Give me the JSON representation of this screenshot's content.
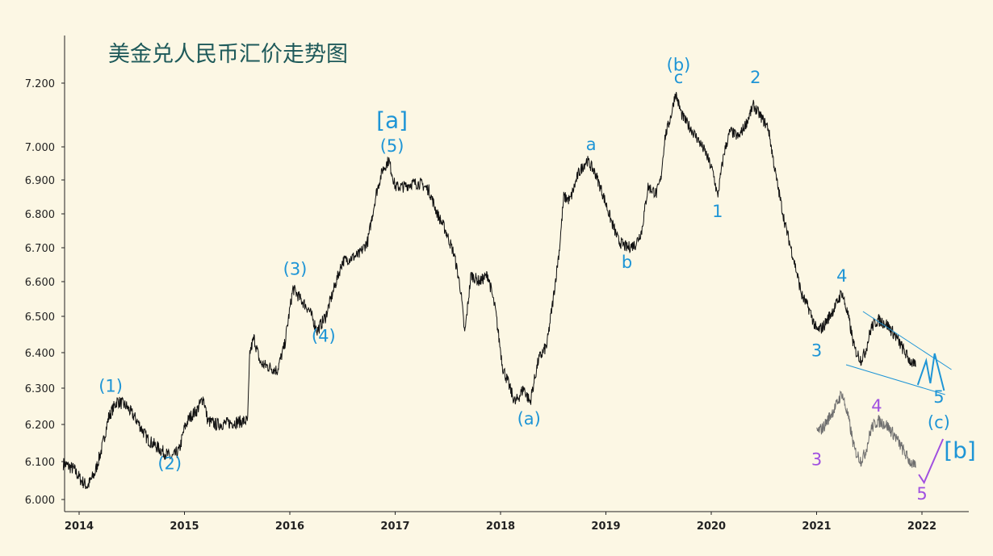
{
  "chart_data": {
    "type": "line",
    "title": "美金兑人民币汇价走势图",
    "xlabel": "",
    "ylabel": "",
    "x_ticks": [
      "2014",
      "2015",
      "2016",
      "2017",
      "2018",
      "2019",
      "2020",
      "2021",
      "2022"
    ],
    "y_ticks": [
      "6.000",
      "6.100",
      "6.200",
      "6.300",
      "6.400",
      "6.500",
      "6.600",
      "6.700",
      "6.800",
      "6.900",
      "7.000",
      "7.200"
    ],
    "xlim": [
      2013.85,
      2022.45
    ],
    "ylim_note": "non-linear price axis as printed",
    "grid": false,
    "colors": {
      "price": "#111111",
      "wave_blue": "#1e95d6",
      "wave_purple": "#a050e0",
      "projection_gray": "#6f6f6f",
      "background": "#fcf7e4",
      "title": "#1e5a5a"
    },
    "series": [
      {
        "values": [
          [
            2013.85,
            6.095
          ],
          [
            2013.95,
            6.08
          ],
          [
            2014.02,
            6.05
          ],
          [
            2014.08,
            6.035
          ],
          [
            2014.15,
            6.07
          ],
          [
            2014.22,
            6.14
          ],
          [
            2014.28,
            6.22
          ],
          [
            2014.36,
            6.265
          ],
          [
            2014.45,
            6.25
          ],
          [
            2014.55,
            6.21
          ],
          [
            2014.65,
            6.16
          ],
          [
            2014.78,
            6.13
          ],
          [
            2014.88,
            6.11
          ],
          [
            2014.95,
            6.13
          ],
          [
            2015.0,
            6.19
          ],
          [
            2015.05,
            6.22
          ],
          [
            2015.12,
            6.24
          ],
          [
            2015.18,
            6.275
          ],
          [
            2015.22,
            6.21
          ],
          [
            2015.3,
            6.2
          ],
          [
            2015.45,
            6.205
          ],
          [
            2015.6,
            6.21
          ],
          [
            2015.62,
            6.4
          ],
          [
            2015.66,
            6.44
          ],
          [
            2015.72,
            6.37
          ],
          [
            2015.8,
            6.36
          ],
          [
            2015.88,
            6.35
          ],
          [
            2015.95,
            6.42
          ],
          [
            2016.0,
            6.52
          ],
          [
            2016.03,
            6.58
          ],
          [
            2016.1,
            6.55
          ],
          [
            2016.18,
            6.52
          ],
          [
            2016.26,
            6.46
          ],
          [
            2016.34,
            6.5
          ],
          [
            2016.42,
            6.58
          ],
          [
            2016.5,
            6.66
          ],
          [
            2016.58,
            6.67
          ],
          [
            2016.66,
            6.68
          ],
          [
            2016.74,
            6.72
          ],
          [
            2016.82,
            6.86
          ],
          [
            2016.88,
            6.93
          ],
          [
            2016.94,
            6.96
          ],
          [
            2017.0,
            6.88
          ],
          [
            2017.08,
            6.88
          ],
          [
            2017.16,
            6.89
          ],
          [
            2017.24,
            6.89
          ],
          [
            2017.32,
            6.87
          ],
          [
            2017.4,
            6.8
          ],
          [
            2017.48,
            6.75
          ],
          [
            2017.56,
            6.68
          ],
          [
            2017.62,
            6.58
          ],
          [
            2017.66,
            6.45
          ],
          [
            2017.72,
            6.62
          ],
          [
            2017.8,
            6.6
          ],
          [
            2017.88,
            6.62
          ],
          [
            2017.95,
            6.52
          ],
          [
            2018.02,
            6.36
          ],
          [
            2018.1,
            6.29
          ],
          [
            2018.14,
            6.26
          ],
          [
            2018.22,
            6.3
          ],
          [
            2018.28,
            6.26
          ],
          [
            2018.36,
            6.38
          ],
          [
            2018.44,
            6.42
          ],
          [
            2018.5,
            6.55
          ],
          [
            2018.56,
            6.7
          ],
          [
            2018.6,
            6.85
          ],
          [
            2018.66,
            6.84
          ],
          [
            2018.74,
            6.92
          ],
          [
            2018.82,
            6.96
          ],
          [
            2018.9,
            6.92
          ],
          [
            2018.98,
            6.85
          ],
          [
            2019.05,
            6.78
          ],
          [
            2019.12,
            6.72
          ],
          [
            2019.2,
            6.7
          ],
          [
            2019.28,
            6.71
          ],
          [
            2019.34,
            6.75
          ],
          [
            2019.4,
            6.88
          ],
          [
            2019.48,
            6.86
          ],
          [
            2019.52,
            6.9
          ],
          [
            2019.56,
            7.03
          ],
          [
            2019.62,
            7.1
          ],
          [
            2019.66,
            7.17
          ],
          [
            2019.72,
            7.1
          ],
          [
            2019.8,
            7.06
          ],
          [
            2019.88,
            7.02
          ],
          [
            2019.95,
            6.98
          ],
          [
            2020.02,
            6.92
          ],
          [
            2020.06,
            6.85
          ],
          [
            2020.12,
            6.98
          ],
          [
            2020.18,
            7.05
          ],
          [
            2020.26,
            7.03
          ],
          [
            2020.34,
            7.08
          ],
          [
            2020.4,
            7.13
          ],
          [
            2020.46,
            7.1
          ],
          [
            2020.54,
            7.06
          ],
          [
            2020.62,
            6.9
          ],
          [
            2020.7,
            6.77
          ],
          [
            2020.78,
            6.67
          ],
          [
            2020.86,
            6.56
          ],
          [
            2020.93,
            6.52
          ],
          [
            2021.0,
            6.46
          ],
          [
            2021.06,
            6.47
          ],
          [
            2021.12,
            6.5
          ],
          [
            2021.18,
            6.53
          ],
          [
            2021.24,
            6.57
          ],
          [
            2021.3,
            6.5
          ],
          [
            2021.36,
            6.41
          ],
          [
            2021.42,
            6.38
          ],
          [
            2021.46,
            6.4
          ],
          [
            2021.52,
            6.47
          ],
          [
            2021.58,
            6.49
          ],
          [
            2021.66,
            6.48
          ],
          [
            2021.74,
            6.45
          ],
          [
            2021.82,
            6.41
          ],
          [
            2021.88,
            6.38
          ],
          [
            2021.94,
            6.36
          ]
        ]
      }
    ],
    "annotations": [
      {
        "text": "(1)",
        "x": 2014.3,
        "y": 6.29,
        "color": "blue"
      },
      {
        "text": "(2)",
        "x": 2014.86,
        "y": 6.08,
        "color": "blue"
      },
      {
        "text": "(3)",
        "x": 2016.05,
        "y": 6.62,
        "color": "blue"
      },
      {
        "text": "(4)",
        "x": 2016.32,
        "y": 6.43,
        "color": "blue"
      },
      {
        "text": "(5)",
        "x": 2016.97,
        "y": 6.985,
        "color": "blue"
      },
      {
        "text": "[a]",
        "x": 2016.97,
        "y": 7.06,
        "color": "blue"
      },
      {
        "text": "(a)",
        "x": 2018.27,
        "y": 6.2,
        "color": "blue"
      },
      {
        "text": "a",
        "x": 2018.86,
        "y": 6.99,
        "color": "blue"
      },
      {
        "text": "b",
        "x": 2019.2,
        "y": 6.64,
        "color": "blue"
      },
      {
        "text": "c",
        "x": 2019.69,
        "y": 7.2,
        "color": "blue"
      },
      {
        "text": "(b)",
        "x": 2019.69,
        "y": 7.24,
        "color": "blue"
      },
      {
        "text": "1",
        "x": 2020.06,
        "y": 6.79,
        "color": "blue"
      },
      {
        "text": "2",
        "x": 2020.42,
        "y": 7.2,
        "color": "blue"
      },
      {
        "text": "3",
        "x": 2021.0,
        "y": 6.39,
        "color": "blue"
      },
      {
        "text": "4",
        "x": 2021.24,
        "y": 6.6,
        "color": "blue"
      },
      {
        "text": "5",
        "x": 2022.16,
        "y": 6.26,
        "color": "blue"
      },
      {
        "text": "(c)",
        "x": 2022.16,
        "y": 6.19,
        "color": "blue"
      },
      {
        "text": "[b]",
        "x": 2022.36,
        "y": 6.11,
        "color": "blue"
      },
      {
        "text": "3",
        "x": 2021.0,
        "y": 6.09,
        "color": "purple"
      },
      {
        "text": "4",
        "x": 2021.57,
        "y": 6.235,
        "color": "purple"
      },
      {
        "text": "5",
        "x": 2022.0,
        "y": 6.0,
        "color": "purple"
      }
    ]
  }
}
